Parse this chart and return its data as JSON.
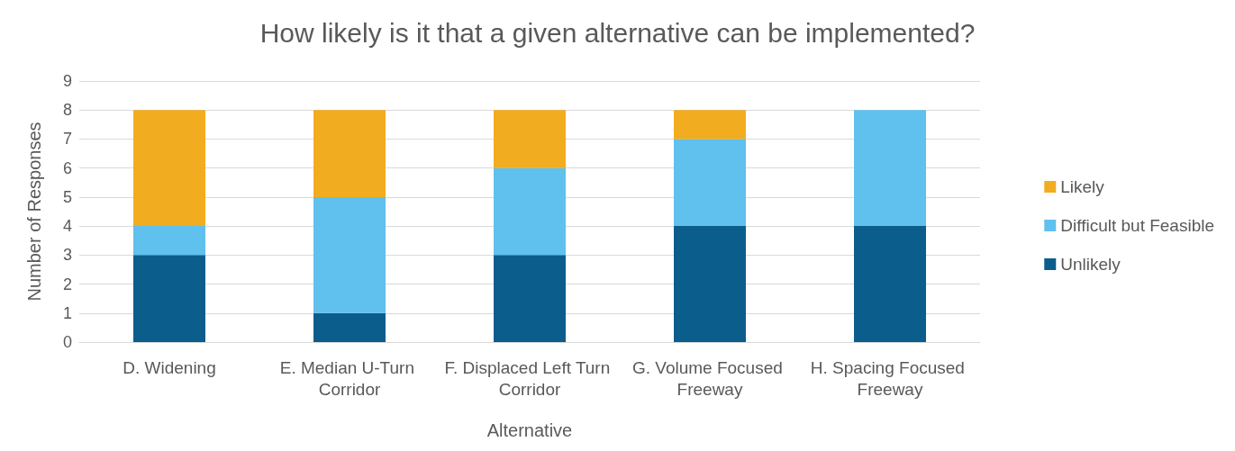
{
  "chart_data": {
    "type": "bar",
    "stacked": true,
    "title": "How likely is it that a given alternative can be implemented?",
    "xlabel": "Alternative",
    "ylabel": "Number of Responses",
    "categories": [
      "D. Widening",
      "E. Median U-Turn Corridor",
      "F. Displaced Left Turn Corridor",
      "G. Volume Focused Freeway",
      "H. Spacing Focused Freeway"
    ],
    "series": [
      {
        "name": "Unlikely",
        "color": "#0b5e8c",
        "values": [
          3,
          1,
          3,
          4,
          4
        ]
      },
      {
        "name": "Difficult but Feasible",
        "color": "#60c0ee",
        "values": [
          1,
          4,
          3,
          3,
          4
        ]
      },
      {
        "name": "Likely",
        "color": "#f2ac1f",
        "values": [
          4,
          3,
          2,
          1,
          0
        ]
      }
    ],
    "ylim": [
      0,
      9
    ],
    "yticks": [
      0,
      1,
      2,
      3,
      4,
      5,
      6,
      7,
      8,
      9
    ],
    "grid": "y",
    "legend": "right"
  }
}
